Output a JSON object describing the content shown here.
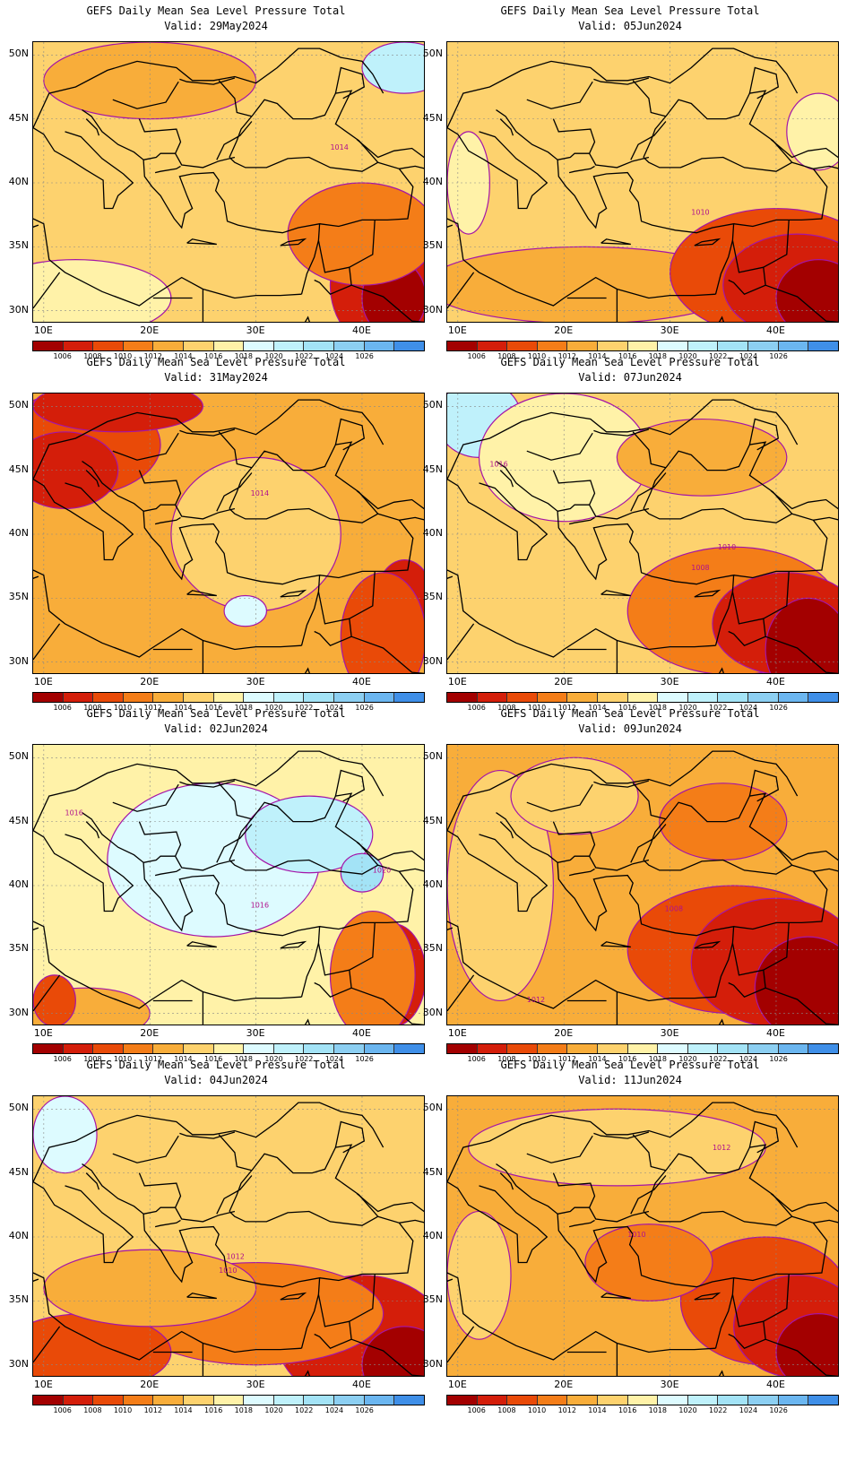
{
  "colorbar": {
    "colors": [
      "#a30000",
      "#d41e0a",
      "#e94a08",
      "#f47d18",
      "#f8ad3a",
      "#fdd26e",
      "#fff2a8",
      "#ddfbff",
      "#bff1fb",
      "#a3e3f6",
      "#8ccff2",
      "#6bb6f0",
      "#3f8fe8"
    ],
    "labels": [
      "1006",
      "1008",
      "1010",
      "1012",
      "1014",
      "1016",
      "1018",
      "1020",
      "1022",
      "1024",
      "1026"
    ]
  },
  "axes": {
    "y_labels": [
      "50N",
      "45N",
      "40N",
      "35N",
      "30N"
    ],
    "x_labels": [
      "10E",
      "20E",
      "30E",
      "40E"
    ]
  },
  "panels": [
    {
      "title": "GEFS Daily Mean Sea Level Pressure Total",
      "valid": "Valid: 29May2024",
      "isolabels": [
        {
          "text": "1014",
          "lon": 37.0,
          "lat": 42.6
        }
      ]
    },
    {
      "title": "GEFS Daily Mean Sea Level Pressure Total",
      "valid": "Valid: 05Jun2024",
      "isolabels": [
        {
          "text": "1010",
          "lon": 32.0,
          "lat": 37.5
        }
      ]
    },
    {
      "title": "GEFS Daily Mean Sea Level Pressure Total",
      "valid": "Valid: 31May2024",
      "isolabels": [
        {
          "text": "1014",
          "lon": 29.5,
          "lat": 43.0
        }
      ]
    },
    {
      "title": "GEFS Daily Mean Sea Level Pressure Total",
      "valid": "Valid: 07Jun2024",
      "isolabels": [
        {
          "text": "1016",
          "lon": 13.0,
          "lat": 45.3
        },
        {
          "text": "1010",
          "lon": 34.5,
          "lat": 38.8
        },
        {
          "text": "1008",
          "lon": 32.0,
          "lat": 37.2
        }
      ]
    },
    {
      "title": "GEFS Daily Mean Sea Level Pressure Total",
      "valid": "Valid: 02Jun2024",
      "isolabels": [
        {
          "text": "1016",
          "lon": 12.0,
          "lat": 45.5
        },
        {
          "text": "1020",
          "lon": 41.0,
          "lat": 41.0
        },
        {
          "text": "1016",
          "lon": 29.5,
          "lat": 38.3
        }
      ]
    },
    {
      "title": "GEFS Daily Mean Sea Level Pressure Total",
      "valid": "Valid: 09Jun2024",
      "isolabels": [
        {
          "text": "1008",
          "lon": 29.5,
          "lat": 38.0
        },
        {
          "text": "1012",
          "lon": 16.5,
          "lat": 30.9
        }
      ]
    },
    {
      "title": "GEFS Daily Mean Sea Level Pressure Total",
      "valid": "Valid: 04Jun2024",
      "isolabels": [
        {
          "text": "1012",
          "lon": 27.2,
          "lat": 38.3
        },
        {
          "text": "1010",
          "lon": 26.5,
          "lat": 37.2
        }
      ]
    },
    {
      "title": "GEFS Daily Mean Sea Level Pressure Total",
      "valid": "Valid: 11Jun2024",
      "isolabels": [
        {
          "text": "1012",
          "lon": 34.0,
          "lat": 46.8
        },
        {
          "text": "1010",
          "lon": 26.0,
          "lat": 40.0
        }
      ]
    }
  ]
}
